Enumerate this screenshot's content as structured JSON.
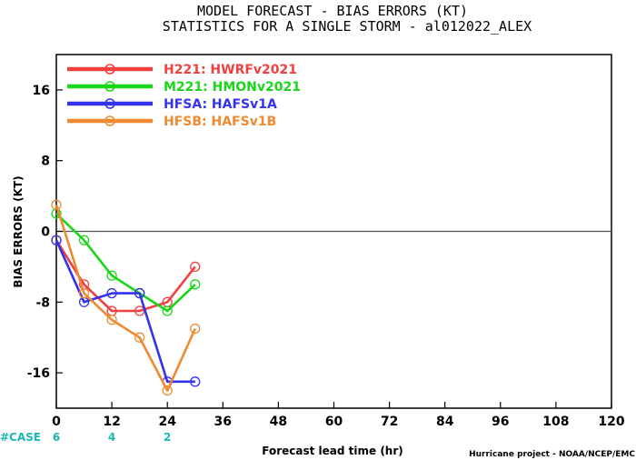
{
  "chart_data": {
    "type": "line",
    "title": "MODEL FORECAST - BIAS ERRORS (KT)",
    "subtitle": "STATISTICS FOR A SINGLE STORM - al012022_ALEX",
    "xlabel": "Forecast lead time (hr)",
    "ylabel": "BIAS ERRORS (KT)",
    "xlim": [
      0,
      120
    ],
    "ylim": [
      -20,
      20
    ],
    "xticks": [
      0,
      12,
      24,
      36,
      48,
      60,
      72,
      84,
      96,
      108,
      120
    ],
    "yticks": [
      -16,
      -8,
      0,
      8,
      16
    ],
    "zero_line": true,
    "legend_position": "top-left",
    "series": [
      {
        "name": "H221: HWRFv2021",
        "color": "#f04040",
        "x": [
          0,
          6,
          12,
          18,
          24,
          30
        ],
        "values": [
          -1,
          -6,
          -9,
          -9,
          -8,
          -4
        ]
      },
      {
        "name": "M221: HMONv2021",
        "color": "#19d619",
        "x": [
          0,
          6,
          12,
          18,
          24,
          30
        ],
        "values": [
          2,
          -1,
          -5,
          -7,
          -9,
          -6
        ]
      },
      {
        "name": "HFSA: HAFSv1A",
        "color": "#3333ee",
        "x": [
          0,
          6,
          12,
          18,
          24,
          30
        ],
        "values": [
          -1,
          -8,
          -7,
          -7,
          -17,
          -17
        ]
      },
      {
        "name": "HFSB: HAFSv1B",
        "color": "#f08a30",
        "x": [
          0,
          6,
          12,
          18,
          24,
          30
        ],
        "values": [
          3,
          -7,
          -10,
          -12,
          -18,
          -11
        ]
      }
    ],
    "case_counts": {
      "label": "#CASE",
      "x": [
        0,
        12,
        24
      ],
      "values": [
        "6",
        "4",
        "2"
      ]
    },
    "footer": "Hurricane project - NOAA/NCEP/EMC"
  }
}
